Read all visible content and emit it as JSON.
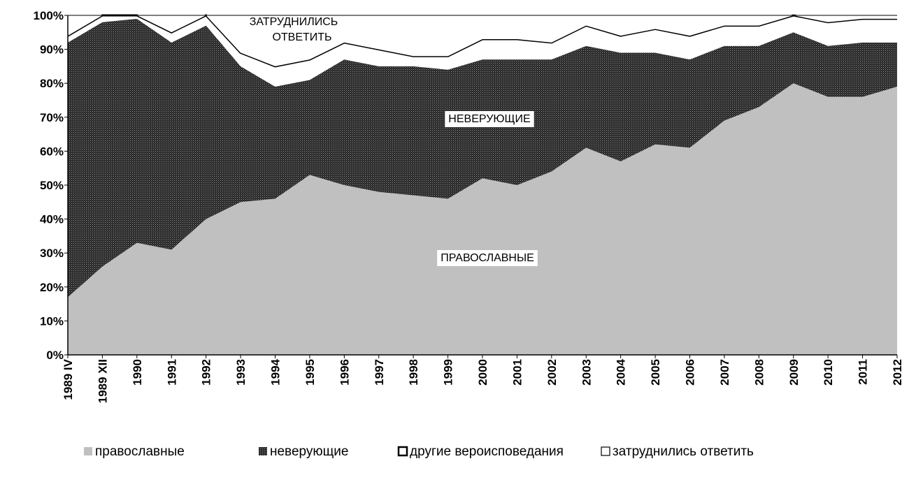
{
  "chart_data": {
    "type": "stacked_area",
    "categories": [
      "1989 IV",
      "1989 XII",
      "1990",
      "1991",
      "1992",
      "1993",
      "1994",
      "1995",
      "1996",
      "1997",
      "1998",
      "1999",
      "2000",
      "2001",
      "2002",
      "2003",
      "2004",
      "2005",
      "2006",
      "2007",
      "2008",
      "2009",
      "2010",
      "2011",
      "2012"
    ],
    "series": [
      {
        "name": "православные",
        "color": "#c0c0c0",
        "values": [
          17,
          26,
          33,
          31,
          40,
          45,
          46,
          53,
          50,
          48,
          47,
          46,
          52,
          50,
          54,
          61,
          57,
          62,
          61,
          69,
          73,
          80,
          76,
          76,
          79
        ]
      },
      {
        "name": "неверующие",
        "color": "#3a3a3a",
        "values": [
          75,
          72,
          66,
          61,
          57,
          40,
          33,
          28,
          37,
          37,
          38,
          38,
          35,
          37,
          33,
          30,
          32,
          27,
          26,
          22,
          18,
          15,
          15,
          16,
          13
        ]
      },
      {
        "name": "другие вероисповедания",
        "color": "#ffffff",
        "edgecolor": "#000000",
        "values": [
          2,
          2,
          1,
          3,
          3,
          4,
          6,
          6,
          5,
          5,
          3,
          4,
          6,
          6,
          5,
          6,
          5,
          7,
          7,
          6,
          6,
          5,
          7,
          7,
          7
        ]
      },
      {
        "name": "затруднились ответить",
        "color": "#ffffff",
        "edgecolor": "#000000",
        "values": [
          6,
          0,
          0,
          5,
          0,
          11,
          15,
          13,
          8,
          10,
          12,
          12,
          7,
          7,
          8,
          3,
          6,
          4,
          6,
          3,
          3,
          0,
          2,
          1,
          1
        ]
      }
    ],
    "ylim": [
      0,
      100
    ],
    "yticks": [
      {
        "value": 0,
        "label": "0%"
      },
      {
        "value": 10,
        "label": "10%"
      },
      {
        "value": 20,
        "label": "20%"
      },
      {
        "value": 30,
        "label": "30%"
      },
      {
        "value": 40,
        "label": "40%"
      },
      {
        "value": 50,
        "label": "50%"
      },
      {
        "value": 60,
        "label": "60%"
      },
      {
        "value": 70,
        "label": "70%"
      },
      {
        "value": 80,
        "label": "80%"
      },
      {
        "value": 90,
        "label": "90%"
      },
      {
        "value": 100,
        "label": "100%"
      }
    ],
    "annotations": [
      [
        "ЗАТРУДНИЛИСЬ",
        "ОТВЕТИТЬ"
      ],
      [
        "НЕВЕРУЮЩИЕ"
      ],
      [
        "ПРАВОСЛАВНЫЕ"
      ]
    ],
    "legend": "bottom"
  }
}
